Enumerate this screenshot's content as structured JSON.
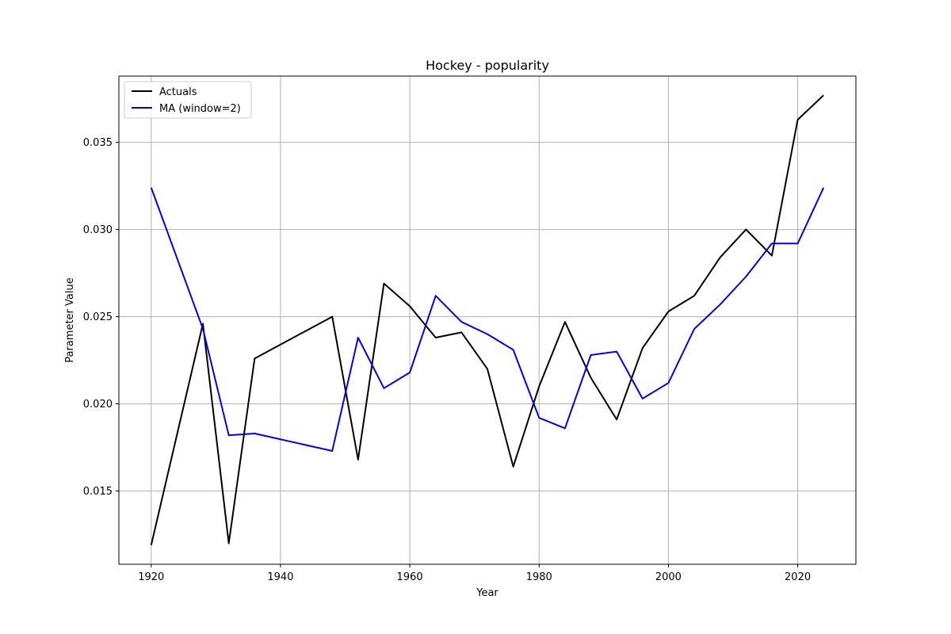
{
  "chart_data": {
    "type": "line",
    "title": "Hockey - popularity",
    "xlabel": "Year",
    "ylabel": "Parameter Value",
    "xlim": [
      1915,
      2029
    ],
    "ylim": [
      0.0108,
      0.0388
    ],
    "xticks": [
      1920,
      1940,
      1960,
      1980,
      2000,
      2020
    ],
    "yticks": [
      0.015,
      0.02,
      0.025,
      0.03,
      0.035
    ],
    "ytick_labels": [
      "0.015",
      "0.020",
      "0.025",
      "0.030",
      "0.035"
    ],
    "grid": true,
    "legend_position": "top-left",
    "series": [
      {
        "name": "Actuals",
        "color": "#000000",
        "x": [
          1920,
          1928,
          1932,
          1936,
          1948,
          1952,
          1956,
          1960,
          1964,
          1968,
          1972,
          1976,
          1980,
          1984,
          1988,
          1992,
          1996,
          2000,
          2004,
          2008,
          2012,
          2016,
          2020,
          2024
        ],
        "y": [
          0.0119,
          0.0246,
          0.012,
          0.0226,
          0.025,
          0.0168,
          0.0269,
          0.0256,
          0.0238,
          0.0241,
          0.022,
          0.0164,
          0.021,
          0.0247,
          0.0215,
          0.0191,
          0.0232,
          0.0253,
          0.0262,
          0.0284,
          0.03,
          0.0285,
          0.0363,
          0.0377
        ]
      },
      {
        "name": "MA (window=2)",
        "color": "#0000ff",
        "x": [
          1920,
          1928,
          1932,
          1936,
          1948,
          1952,
          1956,
          1960,
          1964,
          1968,
          1972,
          1976,
          1980,
          1984,
          1988,
          1992,
          1996,
          2000,
          2004,
          2008,
          2012,
          2016,
          2020,
          2024
        ],
        "y": [
          0.0324,
          0.0243,
          0.0182,
          0.0183,
          0.0173,
          0.0238,
          0.0209,
          0.0218,
          0.0262,
          0.0247,
          0.024,
          0.0231,
          0.0192,
          0.0186,
          0.0228,
          0.023,
          0.0203,
          0.0212,
          0.0243,
          0.0257,
          0.0273,
          0.0292,
          0.0292,
          0.0324
        ]
      }
    ]
  }
}
